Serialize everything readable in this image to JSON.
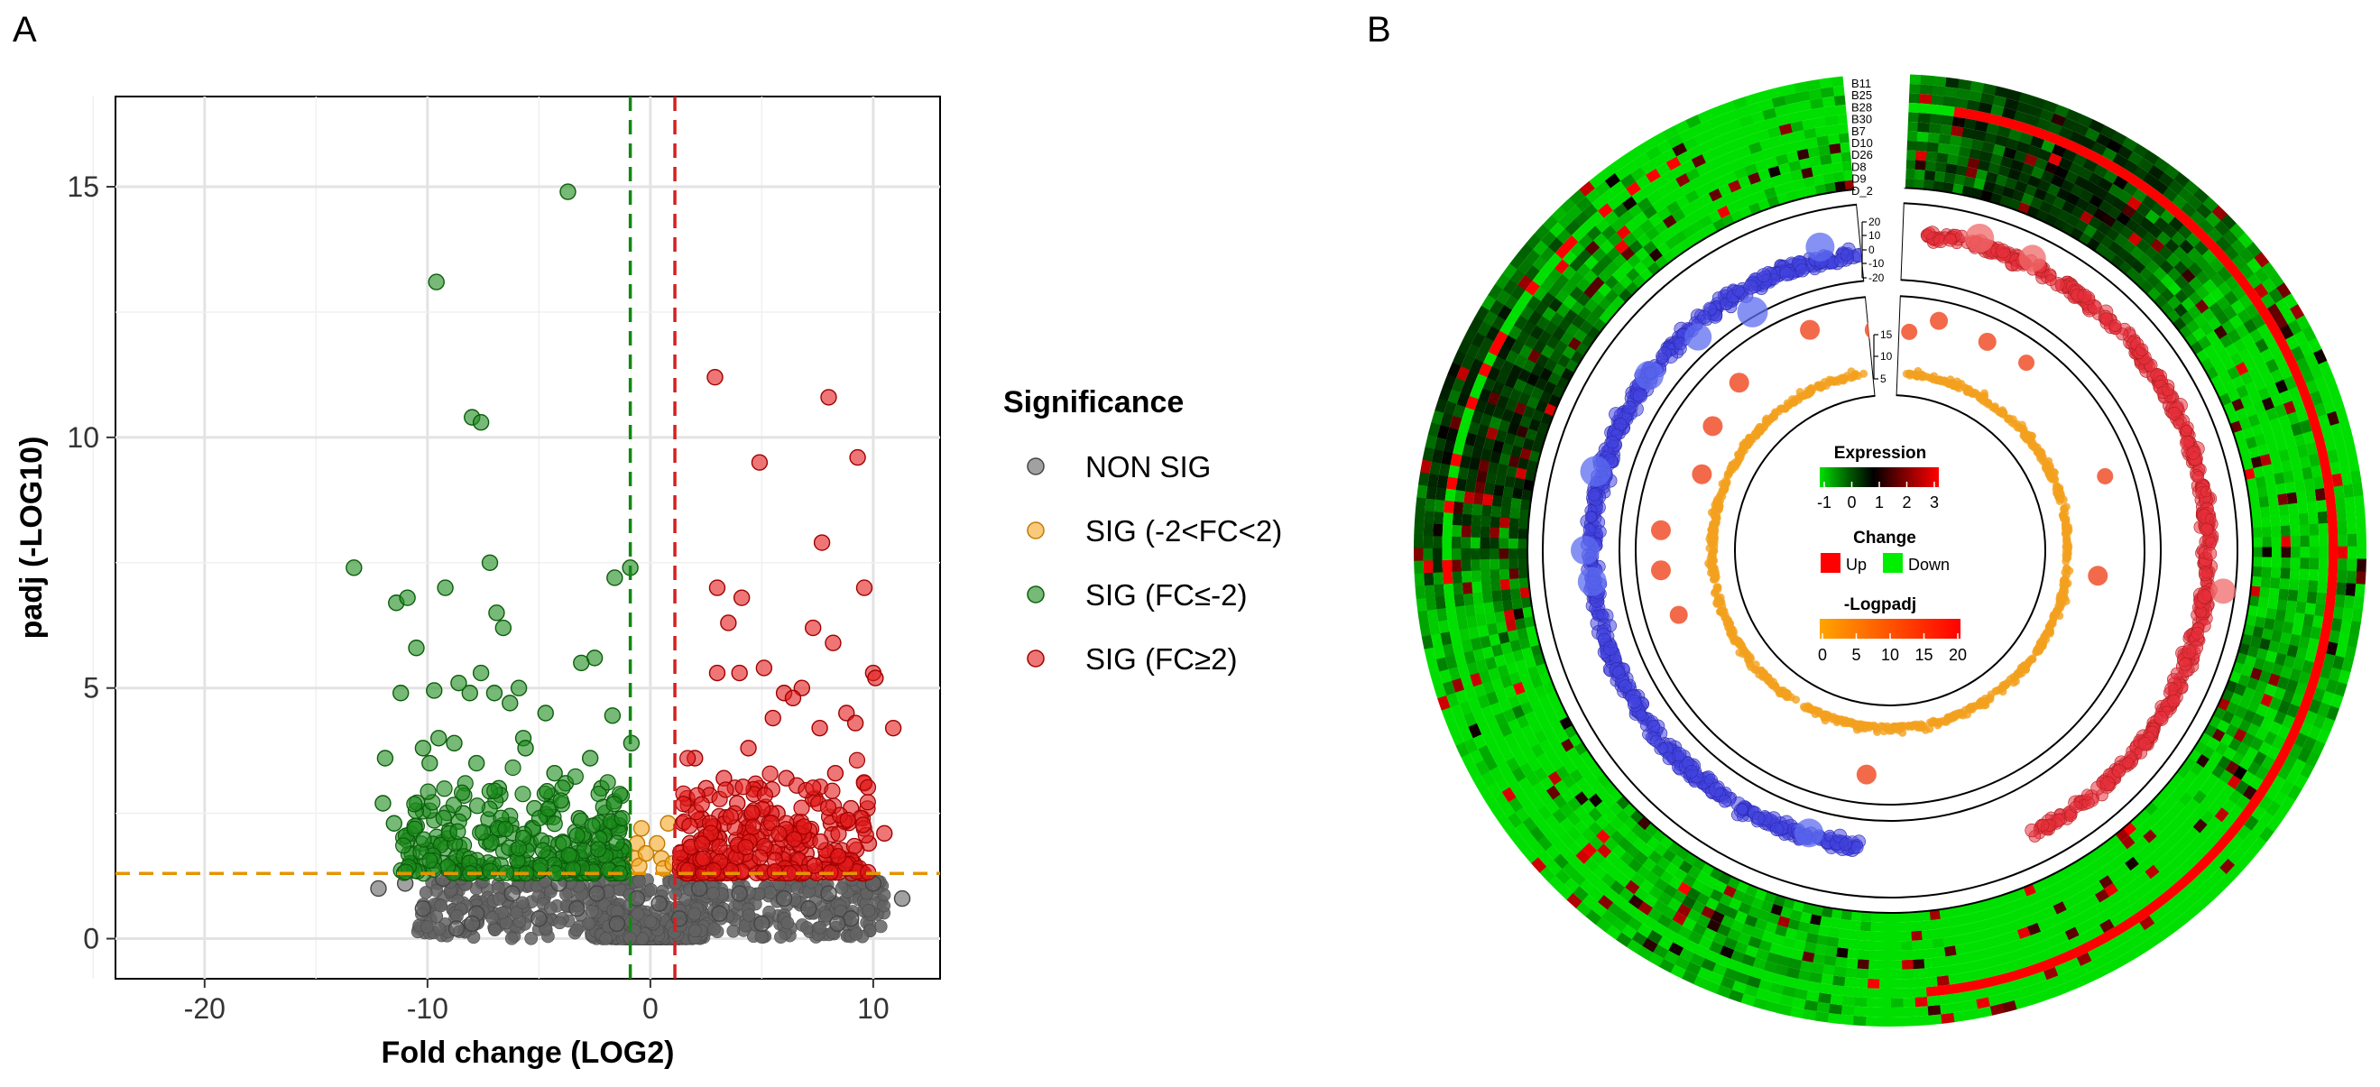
{
  "panels": {
    "a": "A",
    "b": "B"
  },
  "chart_data": [
    {
      "type": "scatter",
      "title": "",
      "xlabel": "Fold change (LOG2)",
      "ylabel": "padj (-LOG10)",
      "xlim": [
        -24,
        13
      ],
      "ylim": [
        -0.8,
        16.8
      ],
      "x_ticks": [
        -20,
        -10,
        0,
        10
      ],
      "y_ticks": [
        0,
        5,
        10,
        15
      ],
      "thresholds": {
        "fc_down": -0.9,
        "fc_up": 1.1,
        "padj": 1.3
      },
      "legend": {
        "title": "Significance",
        "items": [
          {
            "label": "NON SIG",
            "color": "#636363"
          },
          {
            "label": "SIG (-2<FC<2)",
            "color": "#f5a623"
          },
          {
            "label": "SIG (FC≤-2)",
            "color": "#1c8c1c"
          },
          {
            "label": "SIG (FC≥2)",
            "color": "#e31a1a"
          }
        ]
      },
      "colors": {
        "nonsig": "#636363",
        "mid": "#f5a623",
        "down": "#1c8c1c",
        "up": "#e31a1a",
        "padj_line": "#e59400",
        "down_line": "#118811",
        "up_line": "#d42020"
      },
      "series": [
        {
          "name": "SIG (FC≤-2)",
          "points": [
            [
              -3.7,
              14.9
            ],
            [
              -9.6,
              13.1
            ],
            [
              -8.0,
              10.4
            ],
            [
              -7.6,
              10.3
            ],
            [
              -13.3,
              7.4
            ],
            [
              -9.2,
              7.0
            ],
            [
              -7.2,
              7.5
            ],
            [
              -11.4,
              6.7
            ],
            [
              -10.9,
              6.8
            ],
            [
              -6.6,
              6.2
            ],
            [
              -6.9,
              6.5
            ],
            [
              -10.5,
              5.8
            ],
            [
              -7.6,
              5.3
            ],
            [
              -8.6,
              5.1
            ],
            [
              -5.9,
              5.0
            ],
            [
              -2.5,
              5.6
            ],
            [
              -3.1,
              5.5
            ],
            [
              -9.7,
              4.95
            ],
            [
              -7.0,
              4.9
            ],
            [
              -8.1,
              4.9
            ],
            [
              -11.2,
              4.9
            ],
            [
              -6.3,
              4.7
            ],
            [
              -4.7,
              4.5
            ],
            [
              -1.7,
              4.45
            ],
            [
              -9.5,
              4.0
            ],
            [
              -5.7,
              4.0
            ],
            [
              -8.8,
              3.9
            ],
            [
              -5.6,
              3.8
            ],
            [
              -10.2,
              3.8
            ],
            [
              -2.7,
              3.6
            ],
            [
              -11.9,
              3.6
            ],
            [
              -7.8,
              3.5
            ],
            [
              -9.9,
              3.5
            ],
            [
              -1.6,
              7.2
            ],
            [
              -0.9,
              7.4
            ],
            [
              -0.85,
              3.9
            ],
            [
              -4.3,
              3.3
            ],
            [
              -3.8,
              3.1
            ],
            [
              -2.2,
              3.0
            ],
            [
              -6.8,
              3.0
            ],
            [
              -12.0,
              2.7
            ],
            [
              -5.2,
              2.6
            ],
            [
              -8.4,
              2.5
            ],
            [
              -3.2,
              2.4
            ],
            [
              -11.5,
              2.3
            ],
            [
              -1.9,
              2.2
            ],
            [
              -7.1,
              2.1
            ],
            [
              -9.1,
              2.0
            ],
            [
              -4.6,
              1.9
            ],
            [
              -2.6,
              1.8
            ],
            [
              -6.0,
              1.7
            ],
            [
              -10.7,
              1.7
            ],
            [
              -3.5,
              1.6
            ],
            [
              -1.3,
              1.5
            ],
            [
              -5.5,
              1.5
            ],
            [
              -8.9,
              1.5
            ],
            [
              -4.0,
              1.4
            ],
            [
              -2.9,
              1.4
            ],
            [
              -7.4,
              1.4
            ],
            [
              -1.8,
              1.35
            ]
          ]
        },
        {
          "name": "SIG (FC≥2)",
          "points": [
            [
              2.9,
              11.2
            ],
            [
              8.0,
              10.8
            ],
            [
              4.9,
              9.5
            ],
            [
              9.3,
              9.6
            ],
            [
              7.7,
              7.9
            ],
            [
              3.0,
              7.0
            ],
            [
              9.6,
              7.0
            ],
            [
              7.3,
              6.2
            ],
            [
              4.1,
              6.8
            ],
            [
              3.5,
              6.3
            ],
            [
              8.2,
              5.9
            ],
            [
              3.0,
              5.3
            ],
            [
              5.1,
              5.4
            ],
            [
              4.0,
              5.3
            ],
            [
              10.0,
              5.3
            ],
            [
              10.1,
              5.2
            ],
            [
              6.0,
              4.9
            ],
            [
              6.8,
              5.0
            ],
            [
              6.4,
              4.8
            ],
            [
              8.8,
              4.5
            ],
            [
              5.5,
              4.4
            ],
            [
              9.2,
              4.3
            ],
            [
              7.6,
              4.2
            ],
            [
              10.9,
              4.2
            ],
            [
              4.4,
              3.8
            ],
            [
              2.0,
              3.6
            ],
            [
              3.3,
              3.2
            ],
            [
              8.3,
              3.3
            ],
            [
              6.1,
              3.2
            ],
            [
              9.6,
              3.1
            ],
            [
              2.5,
              3.0
            ],
            [
              4.9,
              3.0
            ],
            [
              7.4,
              2.8
            ],
            [
              3.9,
              2.7
            ],
            [
              9.0,
              2.6
            ],
            [
              5.7,
              2.5
            ],
            [
              2.3,
              2.4
            ],
            [
              8.1,
              2.3
            ],
            [
              4.3,
              2.2
            ],
            [
              6.7,
              2.2
            ],
            [
              10.5,
              2.1
            ],
            [
              3.1,
              2.0
            ],
            [
              9.8,
              1.9
            ],
            [
              5.2,
              1.8
            ],
            [
              1.8,
              1.8
            ],
            [
              7.0,
              1.7
            ],
            [
              2.7,
              1.6
            ],
            [
              8.6,
              1.6
            ],
            [
              4.6,
              1.5
            ],
            [
              6.3,
              1.5
            ],
            [
              3.7,
              1.4
            ],
            [
              9.2,
              1.45
            ],
            [
              2.1,
              1.4
            ],
            [
              5.9,
              1.35
            ],
            [
              7.8,
              1.4
            ],
            [
              1.5,
              1.35
            ]
          ]
        },
        {
          "name": "SIG (-2<FC<2)",
          "points": [
            [
              -0.4,
              2.2
            ],
            [
              -0.6,
              1.9
            ],
            [
              -0.7,
              1.6
            ],
            [
              0.3,
              1.9
            ],
            [
              0.5,
              1.6
            ],
            [
              0.8,
              2.3
            ],
            [
              -0.5,
              1.45
            ],
            [
              0.6,
              1.4
            ],
            [
              1.0,
              1.5
            ],
            [
              -0.2,
              1.7
            ]
          ]
        },
        {
          "name": "NON SIG",
          "points": [
            [
              -9.3,
              1.2
            ],
            [
              -7.8,
              0.5
            ],
            [
              -8.0,
              0.3
            ],
            [
              -6.2,
              0.9
            ],
            [
              -5.0,
              0.4
            ],
            [
              -4.1,
              1.1
            ],
            [
              -3.3,
              0.6
            ],
            [
              -2.4,
              0.9
            ],
            [
              -1.5,
              0.3
            ],
            [
              -0.6,
              0.8
            ],
            [
              0.4,
              0.7
            ],
            [
              1.3,
              0.4
            ],
            [
              2.2,
              1.0
            ],
            [
              3.1,
              0.5
            ],
            [
              4.0,
              0.9
            ],
            [
              5.0,
              0.3
            ],
            [
              6.0,
              0.8
            ],
            [
              7.1,
              0.6
            ],
            [
              8.0,
              0.9
            ],
            [
              9.0,
              0.4
            ],
            [
              10.0,
              1.1
            ],
            [
              -11.0,
              1.1
            ],
            [
              -10.2,
              0.6
            ],
            [
              -12.2,
              1.0
            ],
            [
              11.3,
              0.8
            ],
            [
              -8.7,
              0.2
            ],
            [
              8.4,
              0.3
            ]
          ]
        }
      ],
      "nonsig_band": {
        "x_min": -11,
        "x_max": 10.5,
        "y_max": 1.25
      }
    },
    {
      "type": "heatmap",
      "subtype": "circos",
      "track_labels": [
        "B11",
        "B25",
        "B28",
        "B30",
        "B7",
        "D10",
        "D26",
        "D8",
        "D9",
        "D_2"
      ],
      "scatter_track_ticks": [
        20,
        10,
        0,
        -10,
        -20
      ],
      "inner_track_ticks": [
        15,
        10,
        5
      ],
      "legends": {
        "expression": {
          "title": "Expression",
          "ticks": [
            "-1",
            "0",
            "1",
            "2",
            "3"
          ],
          "colors": [
            "#00e000",
            "#005a00",
            "#000000",
            "#7a0000",
            "#ff0000"
          ]
        },
        "change": {
          "title": "Change",
          "items": [
            {
              "label": "Up",
              "color": "#ff0000"
            },
            {
              "label": "Down",
              "color": "#00ee00"
            }
          ]
        },
        "logpadj": {
          "title": "-Logpadj",
          "ticks": [
            "0",
            "5",
            "10",
            "15",
            "20"
          ],
          "colors": [
            "#ffa500",
            "#ff0000"
          ]
        }
      },
      "colors": {
        "down": "#4343e0",
        "up": "#e8303c",
        "inner": "#f3a01e"
      }
    }
  ]
}
